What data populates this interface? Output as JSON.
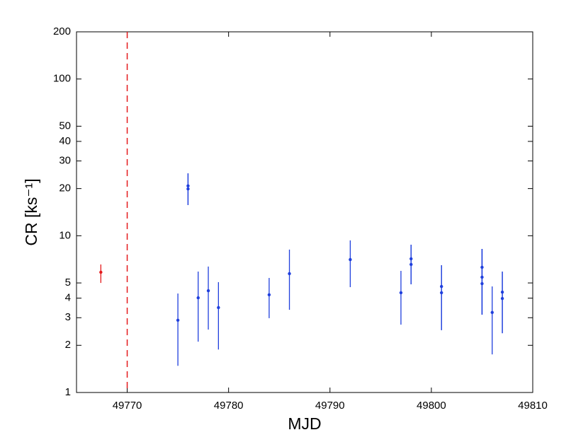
{
  "chart_data": {
    "type": "errorbar",
    "xlabel": "MJD",
    "ylabel": "CR [ks⁻¹]",
    "xlim": [
      49765,
      49810
    ],
    "xticks": [
      49770,
      49780,
      49790,
      49800,
      49810
    ],
    "ylim": [
      1,
      200
    ],
    "yticks": [
      1,
      2,
      3,
      4,
      5,
      10,
      20,
      30,
      40,
      50,
      100,
      200
    ],
    "ylog": true,
    "vline": {
      "x": 49770,
      "color": "#e41a1c",
      "dash": true
    },
    "series": [
      {
        "color": "#e41a1c",
        "x": [
          49767.4
        ],
        "values": [
          5.85
        ],
        "low": [
          5.0
        ],
        "high": [
          6.56
        ]
      },
      {
        "color": "#1f3fdd",
        "x": [
          49775,
          49776,
          49776,
          49777,
          49778,
          49779,
          49784,
          49786,
          49792,
          49797,
          49798,
          49798,
          49801,
          49801,
          49805,
          49805,
          49805,
          49806,
          49807,
          49807
        ],
        "values": [
          2.89,
          20.8,
          19.9,
          4.02,
          4.46,
          3.48,
          4.2,
          5.73,
          7.05,
          4.33,
          7.13,
          6.56,
          4.75,
          4.33,
          6.29,
          5.44,
          4.95,
          3.24,
          4.37,
          3.98
        ],
        "low": [
          1.48,
          15.7,
          15.7,
          2.11,
          2.52,
          1.88,
          2.98,
          3.37,
          4.7,
          2.71,
          4.9,
          4.9,
          2.5,
          2.5,
          3.14,
          3.14,
          3.14,
          1.75,
          2.39,
          2.39
        ],
        "high": [
          4.28,
          25.0,
          25.0,
          5.91,
          6.36,
          5.06,
          5.38,
          8.16,
          9.34,
          5.97,
          8.77,
          8.77,
          6.49,
          6.49,
          8.24,
          8.24,
          8.24,
          4.75,
          5.91,
          5.91
        ]
      }
    ]
  }
}
